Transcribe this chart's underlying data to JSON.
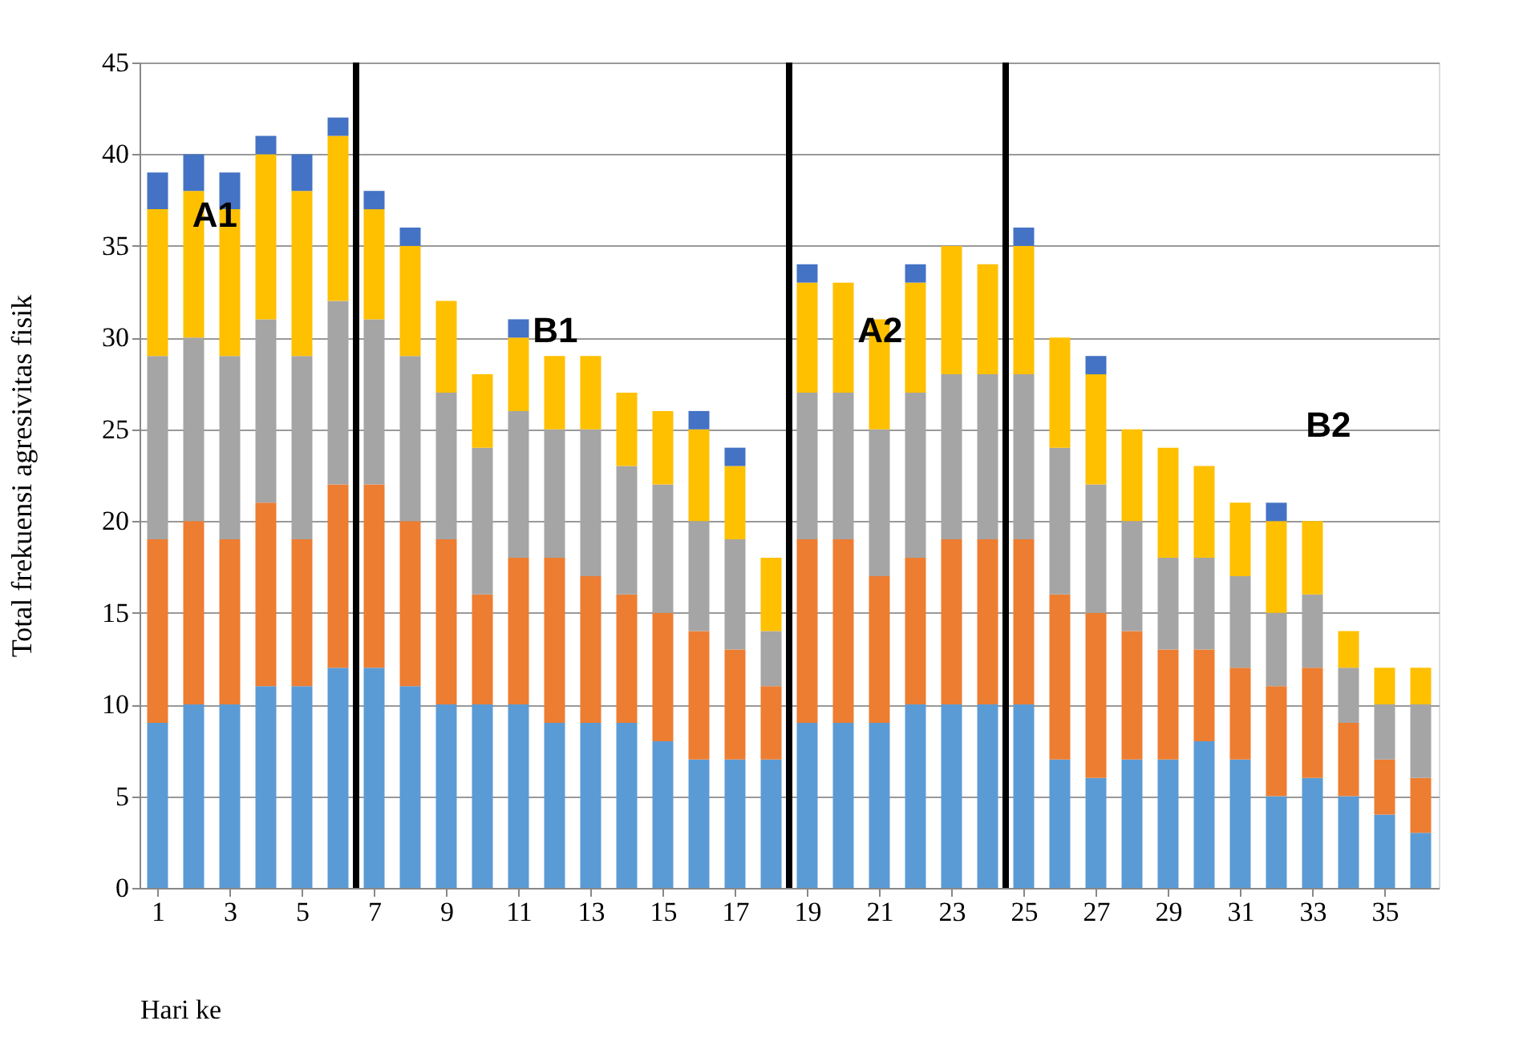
{
  "chart_data": {
    "type": "bar",
    "stacked": true,
    "x": [
      1,
      2,
      3,
      4,
      5,
      6,
      7,
      8,
      9,
      10,
      11,
      12,
      13,
      14,
      15,
      16,
      17,
      18,
      19,
      20,
      21,
      22,
      23,
      24,
      25,
      26,
      27,
      28,
      29,
      30,
      31,
      32,
      33,
      34,
      35,
      36
    ],
    "xlim": [
      0.5,
      36.5
    ],
    "xticks": [
      1,
      3,
      5,
      7,
      9,
      11,
      13,
      15,
      17,
      19,
      21,
      23,
      25,
      27,
      29,
      31,
      33,
      35
    ],
    "ylim": [
      0,
      45
    ],
    "yticks": [
      0,
      5,
      10,
      15,
      20,
      25,
      30,
      35,
      40,
      45
    ],
    "xlabel": "Hari ke",
    "ylabel": "Total   frekuensi  agresivitas   fisik",
    "grid": "y",
    "legend": false,
    "series": [
      {
        "color": "#5b9bd5",
        "values": [
          9,
          10,
          10,
          11,
          11,
          12,
          12,
          11,
          10,
          10,
          10,
          9,
          9,
          9,
          8,
          7,
          7,
          7,
          9,
          9,
          9,
          10,
          10,
          10,
          10,
          7,
          6,
          7,
          7,
          8,
          7,
          5,
          6,
          5,
          4,
          3
        ]
      },
      {
        "color": "#ed7d31",
        "values": [
          10,
          10,
          9,
          10,
          8,
          10,
          10,
          9,
          9,
          6,
          8,
          9,
          8,
          7,
          7,
          7,
          6,
          4,
          10,
          10,
          8,
          8,
          9,
          9,
          9,
          9,
          9,
          7,
          6,
          5,
          5,
          6,
          6,
          4,
          3,
          3
        ]
      },
      {
        "color": "#a5a5a5",
        "values": [
          10,
          10,
          10,
          10,
          10,
          10,
          9,
          9,
          8,
          8,
          8,
          7,
          8,
          7,
          7,
          6,
          6,
          3,
          8,
          8,
          8,
          9,
          9,
          9,
          9,
          8,
          7,
          6,
          5,
          5,
          5,
          4,
          4,
          3,
          3,
          4
        ]
      },
      {
        "color": "#ffc000",
        "values": [
          8,
          8,
          8,
          9,
          9,
          9,
          6,
          6,
          5,
          4,
          4,
          4,
          4,
          4,
          4,
          5,
          4,
          4,
          6,
          6,
          6,
          6,
          7,
          6,
          7,
          6,
          6,
          5,
          6,
          5,
          4,
          5,
          4,
          2,
          2,
          2
        ]
      },
      {
        "color": "#4472c4",
        "values": [
          2,
          2,
          2,
          1,
          2,
          1,
          1,
          1,
          0,
          0,
          1,
          0,
          0,
          0,
          0,
          1,
          1,
          0,
          1,
          0,
          0,
          1,
          0,
          0,
          1,
          0,
          1,
          0,
          0,
          0,
          0,
          1,
          0,
          0,
          0,
          0
        ]
      }
    ],
    "ref_lines": [
      {
        "axis": "x",
        "value": 6.5,
        "color": "#000000"
      },
      {
        "axis": "x",
        "value": 18.5,
        "color": "#000000"
      },
      {
        "axis": "x",
        "value": 24.5,
        "color": "#000000"
      }
    ],
    "annotations": [
      "A1",
      "B1",
      "A2",
      "B2"
    ]
  }
}
